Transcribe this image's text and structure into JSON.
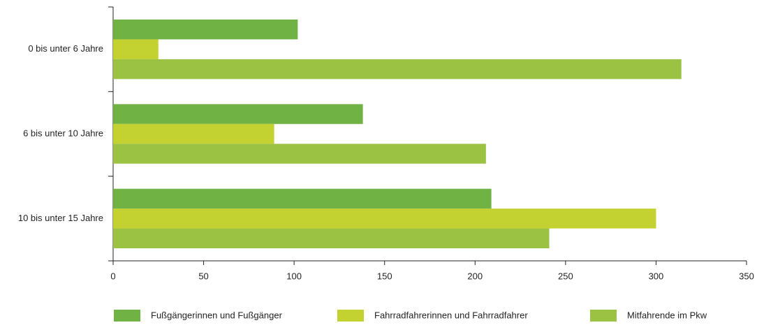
{
  "chart_data": {
    "type": "bar",
    "orientation": "horizontal",
    "categories": [
      "0 bis unter 6 Jahre",
      "6 bis unter 10 Jahre",
      "10 bis unter 15 Jahre"
    ],
    "series": [
      {
        "name": "Fußgängerinnen und Fußgänger",
        "color": "#70b244",
        "values": [
          102,
          138,
          209
        ]
      },
      {
        "name": "Fahrradfahrerinnen und Fahrradfahrer",
        "color": "#c3d131",
        "values": [
          25,
          89,
          300
        ]
      },
      {
        "name": "Mitfahrende im Pkw",
        "color": "#9cc243",
        "values": [
          314,
          206,
          241
        ]
      }
    ],
    "xlim": [
      0,
      350
    ],
    "xticks": [
      0,
      50,
      100,
      150,
      200,
      250,
      300,
      350
    ],
    "legend": "bottom"
  }
}
